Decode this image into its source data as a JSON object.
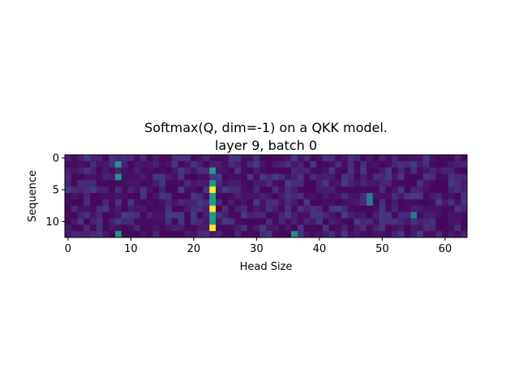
{
  "chart_data": {
    "type": "heatmap",
    "title": "Softmax(Q, dim=-1) on a QKK model.",
    "subtitle": "layer 9, batch 0",
    "xlabel": "Head Size",
    "ylabel": "Sequence",
    "n_cols": 64,
    "n_rows": 13,
    "xlim": [
      -0.5,
      63.5
    ],
    "ylim": [
      12.5,
      -0.5
    ],
    "x_ticks": [
      0,
      10,
      20,
      30,
      40,
      50,
      60
    ],
    "y_ticks": [
      0,
      5,
      10
    ],
    "colormap": "viridis",
    "grid": false,
    "legend": "none",
    "hot_columns": [
      {
        "col": 23,
        "rows": [
          5,
          8,
          11
        ],
        "value": 1.0
      },
      {
        "col": 23,
        "rows": [
          2,
          4,
          6,
          7,
          9,
          10
        ],
        "value": 0.55
      },
      {
        "col": 8,
        "rows": [
          1,
          3,
          12
        ],
        "value": 0.5
      },
      {
        "col": 36,
        "rows": [
          12
        ],
        "value": 0.5
      },
      {
        "col": 48,
        "rows": [
          6,
          7
        ],
        "value": 0.4
      },
      {
        "col": 55,
        "rows": [
          9
        ],
        "value": 0.4
      }
    ]
  }
}
